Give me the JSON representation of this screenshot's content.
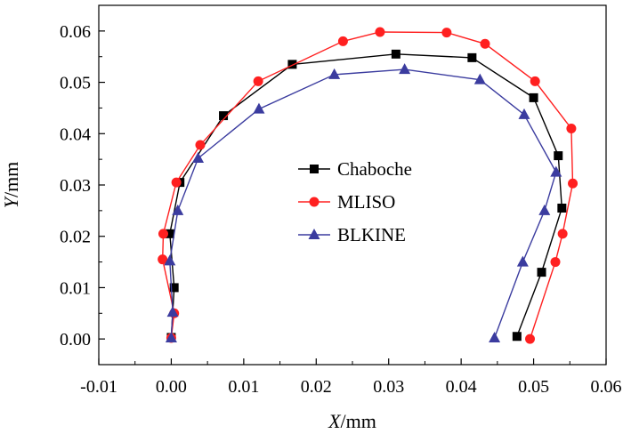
{
  "chart_data": {
    "type": "scatter",
    "title": "",
    "xlabel": {
      "var": "X",
      "unit": "/mm"
    },
    "ylabel": {
      "var": "Y",
      "unit": "/mm"
    },
    "xlim": [
      -0.01,
      0.06
    ],
    "ylim": [
      -0.005,
      0.065
    ],
    "xticks": [
      "-0.01",
      "0.00",
      "0.01",
      "0.02",
      "0.03",
      "0.04",
      "0.05",
      "0.06"
    ],
    "yticks": [
      "0.00",
      "0.01",
      "0.02",
      "0.03",
      "0.04",
      "0.05",
      "0.06"
    ],
    "grid": false,
    "legend_position": "center",
    "series": [
      {
        "name": "Chaboche",
        "color": "#000000",
        "marker": "square",
        "points": [
          [
            0.0,
            0.0003
          ],
          [
            0.0004,
            0.01
          ],
          [
            -0.0002,
            0.0205
          ],
          [
            0.0012,
            0.0305
          ],
          [
            0.0072,
            0.0435
          ],
          [
            0.0167,
            0.0535
          ],
          [
            0.031,
            0.0555
          ],
          [
            0.0415,
            0.0548
          ],
          [
            0.05,
            0.047
          ],
          [
            0.0534,
            0.0357
          ],
          [
            0.0539,
            0.0255
          ],
          [
            0.0511,
            0.013
          ],
          [
            0.0477,
            0.0005
          ]
        ]
      },
      {
        "name": "MLISO",
        "color": "#ff2020",
        "marker": "circle",
        "points": [
          [
            0.0,
            0.0002
          ],
          [
            0.0004,
            0.005
          ],
          [
            -0.0012,
            0.0155
          ],
          [
            -0.0011,
            0.0205
          ],
          [
            0.0007,
            0.0305
          ],
          [
            0.004,
            0.0378
          ],
          [
            0.012,
            0.0502
          ],
          [
            0.0237,
            0.058
          ],
          [
            0.0288,
            0.0598
          ],
          [
            0.038,
            0.0597
          ],
          [
            0.0433,
            0.0575
          ],
          [
            0.0502,
            0.0502
          ],
          [
            0.0552,
            0.041
          ],
          [
            0.0554,
            0.0303
          ],
          [
            0.054,
            0.0205
          ],
          [
            0.053,
            0.015
          ],
          [
            0.0495,
            0.0
          ]
        ]
      },
      {
        "name": "BLKINE",
        "color": "#3b3c9f",
        "marker": "triangle",
        "points": [
          [
            0.0,
            0.0002
          ],
          [
            0.0002,
            0.0052
          ],
          [
            -0.0002,
            0.0152
          ],
          [
            0.0009,
            0.025
          ],
          [
            0.0037,
            0.0352
          ],
          [
            0.0121,
            0.0448
          ],
          [
            0.0225,
            0.0515
          ],
          [
            0.0322,
            0.0525
          ],
          [
            0.0426,
            0.0505
          ],
          [
            0.0487,
            0.0437
          ],
          [
            0.0531,
            0.0325
          ],
          [
            0.0515,
            0.025
          ],
          [
            0.0485,
            0.015
          ],
          [
            0.0446,
            0.0002
          ]
        ]
      }
    ]
  }
}
